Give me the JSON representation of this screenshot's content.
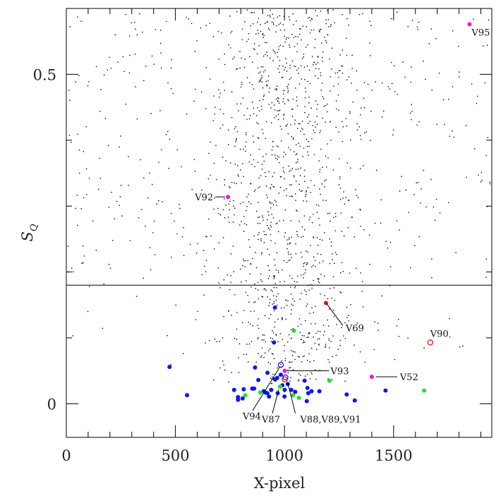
{
  "chart_data": {
    "type": "scatter",
    "title": "",
    "xlabel": "X-pixel",
    "ylabel": "S",
    "ylabel_subscript": "Q",
    "xlim": [
      0,
      1950
    ],
    "ylim": [
      -0.051,
      0.6
    ],
    "x_ticks_major": [
      0,
      500,
      1000,
      1500
    ],
    "x_tick_labels": [
      "0",
      "500",
      "1000",
      "1500"
    ],
    "x_minor_step": 100,
    "y_ticks_major": [
      0,
      0.5
    ],
    "y_tick_labels": [
      "0",
      "0.5"
    ],
    "y_minor_step": 0.1,
    "grid": false,
    "threshold_line": {
      "y": 0.18
    },
    "field_stars": {
      "description_of_series": "non-variable stars",
      "color": "#000000",
      "count": 1500,
      "x_center": 1000,
      "x_spread": 170,
      "core_fraction": 0.72,
      "y_range": [
        0.0,
        0.6
      ]
    },
    "series": [
      {
        "name": "blue",
        "color": "#0a14ff",
        "filled": true,
        "points": [
          [
            956,
            0.146
          ],
          [
            952,
            0.093
          ],
          [
            865,
            0.055
          ],
          [
            922,
            0.047
          ],
          [
            983,
            0.044
          ],
          [
            880,
            0.036
          ],
          [
            956,
            0.037
          ],
          [
            966,
            0.039
          ],
          [
            1092,
            0.035
          ],
          [
            769,
            0.021
          ],
          [
            813,
            0.022
          ],
          [
            852,
            0.023
          ],
          [
            861,
            0.023
          ],
          [
            913,
            0.017
          ],
          [
            921,
            0.016
          ],
          [
            939,
            0.021
          ],
          [
            969,
            0.016
          ],
          [
            1001,
            0.021
          ],
          [
            1031,
            0.021
          ],
          [
            1049,
            0.018
          ],
          [
            1105,
            0.024
          ],
          [
            1124,
            0.019
          ],
          [
            1160,
            0.019
          ],
          [
            1109,
            0.016
          ],
          [
            787,
            0.01
          ],
          [
            787,
            0.006
          ],
          [
            808,
            0.008
          ],
          [
            929,
            0.011
          ],
          [
            1000,
            0.011
          ],
          [
            1102,
            0.004
          ],
          [
            1285,
            0.014
          ],
          [
            1322,
            0.005
          ],
          [
            1463,
            0.02
          ],
          [
            473,
            0.056
          ],
          [
            553,
            0.013
          ],
          [
            905,
            0.019
          ],
          [
            1015,
            0.03
          ],
          [
            990,
            0.028
          ]
        ]
      },
      {
        "name": "green",
        "color": "#22e022",
        "filled": true,
        "points": [
          [
            1043,
            0.111
          ],
          [
            1206,
            0.035
          ],
          [
            1640,
            0.02
          ],
          [
            820,
            0.013
          ],
          [
            889,
            0.017
          ],
          [
            980,
            0.026
          ],
          [
            1039,
            0.013
          ],
          [
            1066,
            0.009
          ]
        ]
      },
      {
        "name": "labelled",
        "points": [
          {
            "label": "V69",
            "x": 1190,
            "y": 0.153,
            "color": "#ee1111",
            "filled": true
          },
          {
            "label": "V90",
            "x": 1668,
            "y": 0.093,
            "color": "#ee1111",
            "filled": false
          },
          {
            "label": "V93",
            "x": 1001,
            "y": 0.05,
            "color": "#ee11ee",
            "filled": true
          },
          {
            "label": "V52",
            "x": 1400,
            "y": 0.041,
            "color": "#ee11ee",
            "filled": true
          },
          {
            "label": "V94",
            "x": 983,
            "y": 0.059,
            "color": "#0a14ff",
            "filled": false
          },
          {
            "label": "V87",
            "x": 980,
            "y": 0.026,
            "color": "#22e022",
            "filled": true
          },
          {
            "label": "V88,V89,V91",
            "x": 1001,
            "y": 0.037,
            "color": "#ee1111",
            "filled": false
          },
          {
            "label": "V92",
            "x": 741,
            "y": 0.314,
            "color": "#ee11ee",
            "filled": true
          },
          {
            "label": "V95",
            "x": 1848,
            "y": 0.576,
            "color": "#ee11ee",
            "filled": true
          }
        ]
      },
      {
        "name": "blue-open",
        "color": "#0a14ff",
        "filled": false,
        "points": [
          [
            1004,
            0.04
          ]
        ]
      }
    ]
  }
}
